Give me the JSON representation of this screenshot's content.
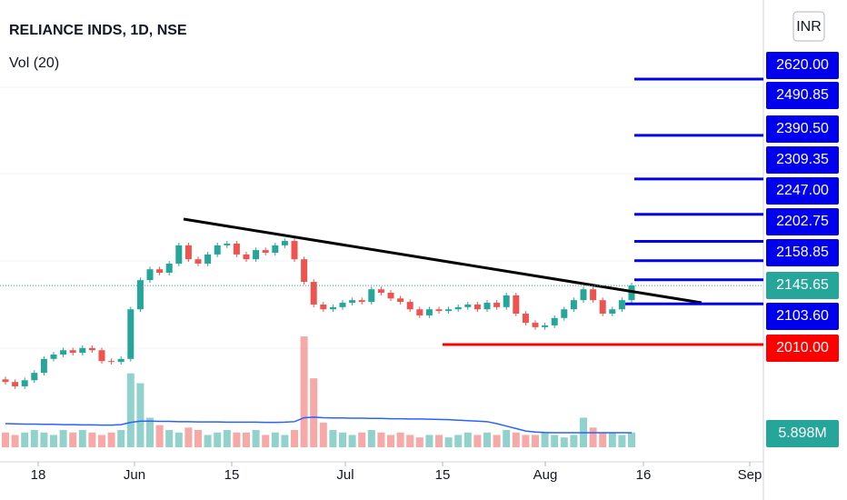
{
  "header": {
    "title": "RELIANCE INDS, 1D, NSE",
    "indicator": "Vol (20)",
    "currency": "INR"
  },
  "chart_data": {
    "type": "candlestick",
    "x_labels": [
      "18",
      "Jun",
      "15",
      "Jul",
      "15",
      "Aug",
      "16",
      "Sep"
    ],
    "open": [
      1930,
      1924,
      1914,
      1928,
      1945,
      1977,
      1987,
      1997,
      1991,
      2002,
      1997,
      1972,
      1970,
      1977,
      2091,
      2158,
      2183,
      2175,
      2196,
      2238,
      2206,
      2196,
      2217,
      2238,
      2242,
      2217,
      2206,
      2227,
      2221,
      2238,
      2248,
      2206,
      2154,
      2102,
      2091,
      2096,
      2106,
      2112,
      2108,
      2137,
      2129,
      2116,
      2108,
      2091,
      2077,
      2091,
      2087,
      2091,
      2096,
      2102,
      2091,
      2106,
      2096,
      2123,
      2081,
      2060,
      2050,
      2054,
      2071,
      2091,
      2112,
      2137,
      2112,
      2081,
      2091,
      2112
    ],
    "high": [
      1936,
      1930,
      1934,
      1951,
      1983,
      1993,
      2003,
      2003,
      2008,
      2008,
      2003,
      1978,
      1983,
      2097,
      2164,
      2189,
      2189,
      2202,
      2244,
      2244,
      2212,
      2223,
      2244,
      2248,
      2248,
      2223,
      2233,
      2233,
      2244,
      2254,
      2254,
      2212,
      2160,
      2108,
      2102,
      2112,
      2118,
      2118,
      2143,
      2143,
      2135,
      2122,
      2114,
      2097,
      2097,
      2097,
      2097,
      2102,
      2108,
      2108,
      2112,
      2112,
      2129,
      2129,
      2087,
      2066,
      2060,
      2077,
      2097,
      2118,
      2143,
      2143,
      2118,
      2097,
      2118,
      2152
    ],
    "low": [
      1918,
      1908,
      1908,
      1922,
      1939,
      1971,
      1981,
      1985,
      1985,
      1991,
      1966,
      1964,
      1964,
      1971,
      2085,
      2152,
      2169,
      2169,
      2190,
      2200,
      2190,
      2190,
      2211,
      2232,
      2211,
      2200,
      2200,
      2215,
      2215,
      2232,
      2200,
      2148,
      2096,
      2085,
      2085,
      2090,
      2100,
      2102,
      2102,
      2123,
      2110,
      2102,
      2085,
      2071,
      2071,
      2081,
      2081,
      2085,
      2090,
      2085,
      2085,
      2090,
      2090,
      2075,
      2054,
      2044,
      2044,
      2048,
      2065,
      2085,
      2106,
      2106,
      2075,
      2075,
      2085,
      2106
    ],
    "close": [
      1924,
      1914,
      1928,
      1945,
      1977,
      1987,
      1997,
      1991,
      2002,
      1997,
      1972,
      1970,
      1977,
      2091,
      2158,
      2183,
      2175,
      2196,
      2238,
      2206,
      2196,
      2217,
      2238,
      2242,
      2217,
      2206,
      2227,
      2221,
      2238,
      2248,
      2206,
      2154,
      2102,
      2091,
      2096,
      2106,
      2112,
      2108,
      2137,
      2129,
      2116,
      2108,
      2091,
      2077,
      2091,
      2087,
      2091,
      2096,
      2102,
      2091,
      2106,
      2096,
      2123,
      2081,
      2060,
      2050,
      2054,
      2071,
      2091,
      2112,
      2137,
      2112,
      2081,
      2091,
      2112,
      2145.65
    ],
    "volume": [
      6,
      5,
      6,
      7,
      6,
      5,
      7,
      6,
      7,
      6,
      5,
      6,
      7,
      30,
      26,
      12,
      9,
      7,
      6,
      8,
      7,
      5,
      6,
      7,
      6,
      6,
      7,
      5,
      6,
      5,
      7,
      45,
      28,
      10,
      7,
      6,
      5,
      6,
      7,
      6,
      5,
      6,
      5,
      4,
      5,
      5,
      4,
      5,
      6,
      5,
      6,
      5,
      7,
      6,
      5,
      5,
      6,
      5,
      4,
      5,
      12,
      8,
      6,
      6,
      5,
      6
    ],
    "volume_ma": [
      9.6,
      9.5,
      9.4,
      9.4,
      9.3,
      9.3,
      9.2,
      9.2,
      9.1,
      9.1,
      9.0,
      9.0,
      9.2,
      10.1,
      10.6,
      10.6,
      10.5,
      10.5,
      10.4,
      10.4,
      10.3,
      10.3,
      10.3,
      10.2,
      10.2,
      10.2,
      10.2,
      10.1,
      10.1,
      10.2,
      10.4,
      12.0,
      12.2,
      12.0,
      11.9,
      11.9,
      11.8,
      11.8,
      11.7,
      11.7,
      11.6,
      11.6,
      11.5,
      11.5,
      11.4,
      11.3,
      11.2,
      11.0,
      10.8,
      10.6,
      10.4,
      9.6,
      8.6,
      7.6,
      6.6,
      6.2,
      6.0,
      5.9,
      5.9,
      5.9,
      5.9,
      5.9,
      5.9,
      5.9,
      5.9,
      5.898
    ],
    "volume_ma_label": {
      "value": 5.898,
      "label": "5.898M"
    },
    "levels": [
      {
        "value": 2620,
        "label": "2620.00",
        "color": "#0000ee"
      },
      {
        "value": 2490.85,
        "label": "2490.85",
        "color": "#0000ee"
      },
      {
        "value": 2390.5,
        "label": "2390.50",
        "color": "#0000ee"
      },
      {
        "value": 2309.35,
        "label": "2309.35",
        "color": "#0000ee"
      },
      {
        "value": 2247,
        "label": "2247.00",
        "color": "#0000ee"
      },
      {
        "value": 2202.75,
        "label": "2202.75",
        "color": "#0000ee"
      },
      {
        "value": 2158.85,
        "label": "2158.85",
        "color": "#0000ee"
      },
      {
        "value": 2145.65,
        "label": "2145.65",
        "color": "#26a69a"
      },
      {
        "value": 2103.6,
        "label": "2103.60",
        "color": "#0000ee"
      },
      {
        "value": 2010,
        "label": "2010.00",
        "color": "#ff0000"
      }
    ],
    "up_color": "#26a69a",
    "down_color": "#ef5350"
  }
}
